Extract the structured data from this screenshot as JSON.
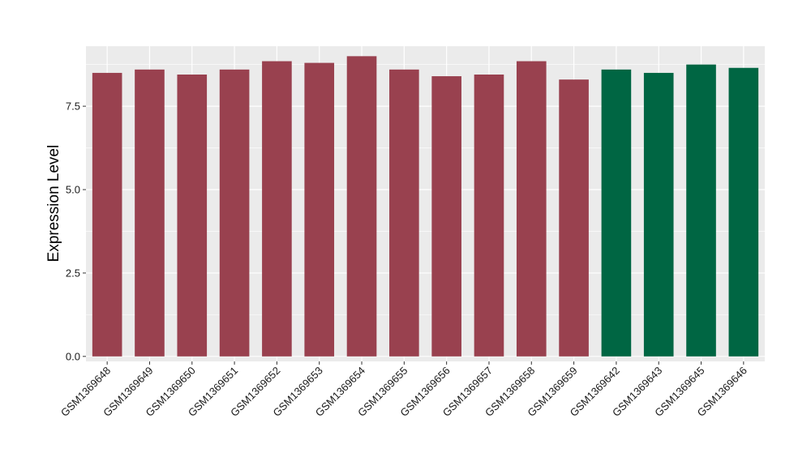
{
  "chart_data": {
    "type": "bar",
    "title": "",
    "xlabel": "",
    "ylabel": "Expression Level",
    "ylim": [
      -0.15,
      9.3
    ],
    "yticks": [
      0.0,
      2.5,
      5.0,
      7.5
    ],
    "ytick_labels": [
      "0.0",
      "2.5",
      "5.0",
      "7.5"
    ],
    "grid": true,
    "legend": "none",
    "panel_background": "#ebebeb",
    "gridline_color": "#ffffff",
    "categories": [
      "GSM1369648",
      "GSM1369649",
      "GSM1369650",
      "GSM1369651",
      "GSM1369652",
      "GSM1369653",
      "GSM1369654",
      "GSM1369655",
      "GSM1369656",
      "GSM1369657",
      "GSM1369658",
      "GSM1369659",
      "GSM1369642",
      "GSM1369643",
      "GSM1369645",
      "GSM1369646"
    ],
    "values": [
      8.5,
      8.6,
      8.45,
      8.6,
      8.85,
      8.8,
      9.0,
      8.6,
      8.4,
      8.45,
      8.85,
      8.3,
      8.6,
      8.5,
      8.75,
      8.65
    ],
    "bar_colors": [
      "#99414f",
      "#99414f",
      "#99414f",
      "#99414f",
      "#99414f",
      "#99414f",
      "#99414f",
      "#99414f",
      "#99414f",
      "#99414f",
      "#99414f",
      "#99414f",
      "#006643",
      "#006643",
      "#006643",
      "#006643"
    ]
  }
}
